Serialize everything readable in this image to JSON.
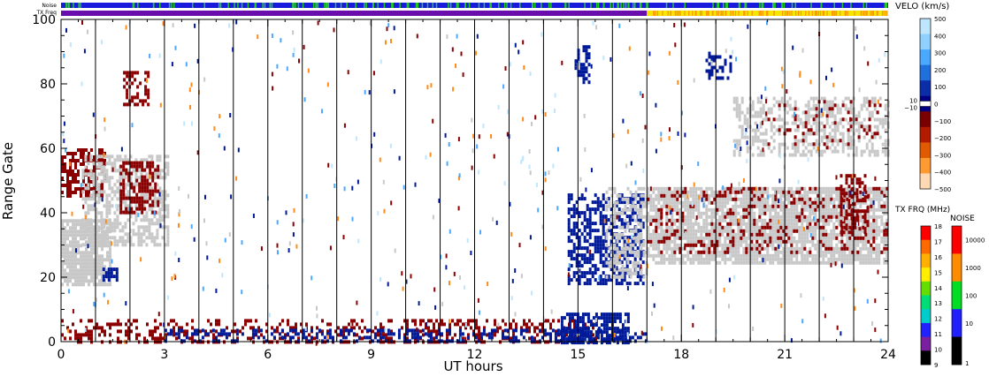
{
  "chart_data": {
    "type": "heatmap",
    "title": "",
    "xlabel": "UT hours",
    "ylabel": "Range Gate",
    "xlim": [
      0,
      24
    ],
    "ylim": [
      0,
      100
    ],
    "x_ticks": [
      0,
      3,
      6,
      9,
      12,
      15,
      18,
      21,
      24
    ],
    "y_ticks": [
      0,
      20,
      40,
      60,
      80,
      100
    ],
    "scan_lines_hours": [
      1,
      2,
      3,
      4,
      5,
      6,
      7,
      8,
      9,
      10,
      11,
      12,
      13,
      14,
      15,
      16,
      17,
      18,
      19,
      20,
      21,
      22,
      23
    ],
    "strips": {
      "noise_label": "Noise",
      "txfreq_label": "TX Freq",
      "noise_segments": [
        {
          "x0": 0,
          "x1": 24,
          "color": "#1a1adc"
        }
      ],
      "noise_speckle_color": "#22cc22",
      "txfreq_segments": [
        {
          "x0": 0,
          "x1": 17,
          "color": "#6a0dad"
        },
        {
          "x0": 17,
          "x1": 24,
          "color": "#f5e600"
        }
      ],
      "txfreq_speckle_color": "#ff9900"
    },
    "velocity_colorbar": {
      "title": "VELO (km/s)",
      "ticks": [
        "500",
        "400",
        "300",
        "200",
        "100",
        "0",
        "−100",
        "−200",
        "−300",
        "−400",
        "−500"
      ],
      "zero_band_labels": [
        "10",
        "−10"
      ],
      "colors": [
        "#bfe6ff",
        "#8fd0ff",
        "#4aa8ff",
        "#1f6fdc",
        "#0a2ea8",
        "#000080",
        "#7a0000",
        "#b31a00",
        "#e05a00",
        "#ff9a33",
        "#ffd9b3"
      ]
    },
    "txfreq_colorbar": {
      "title": "TX FRQ (MHz)",
      "ticks": [
        "18",
        "17",
        "16",
        "15",
        "14",
        "13",
        "12",
        "11",
        "10",
        "9"
      ],
      "colors": [
        "#ff0000",
        "#ff6a00",
        "#ffb000",
        "#ffee00",
        "#66dd00",
        "#00dd77",
        "#00cccc",
        "#2222ff",
        "#7a1fa0",
        "#000000"
      ]
    },
    "noise_colorbar": {
      "title": "NOISE",
      "ticks": [
        "10000",
        "1000",
        "100",
        "10",
        "1"
      ],
      "colors": [
        "#ff0000",
        "#ff8c00",
        "#00dd22",
        "#2020ff",
        "#000000"
      ]
    },
    "scatter_blobs": [
      {
        "x0": 0.0,
        "x1": 1.4,
        "y0": 18,
        "y1": 38,
        "color": "#c8c8c8",
        "density": 0.85
      },
      {
        "x0": 1.2,
        "x1": 1.6,
        "y0": 19,
        "y1": 23,
        "color": "#001a99",
        "density": 0.8
      },
      {
        "x0": 0.0,
        "x1": 1.3,
        "y0": 45,
        "y1": 60,
        "color": "#8b0000",
        "density": 0.55
      },
      {
        "x0": 0.6,
        "x1": 3.1,
        "y0": 30,
        "y1": 58,
        "color": "#c8c8c8",
        "density": 0.55
      },
      {
        "x0": 1.7,
        "x1": 2.8,
        "y0": 40,
        "y1": 56,
        "color": "#8b0000",
        "density": 0.55
      },
      {
        "x0": 1.8,
        "x1": 2.5,
        "y0": 74,
        "y1": 84,
        "color": "#8b0000",
        "density": 0.4
      },
      {
        "x0": 0.0,
        "x1": 15.5,
        "y0": 0,
        "y1": 7,
        "color": "#8b0000",
        "density": 0.35
      },
      {
        "x0": 3.0,
        "x1": 17.0,
        "y0": 0,
        "y1": 4,
        "color": "#001a99",
        "density": 0.35
      },
      {
        "x0": 14.5,
        "x1": 16.5,
        "y0": 0,
        "y1": 9,
        "color": "#001a99",
        "density": 0.7
      },
      {
        "x0": 14.7,
        "x1": 16.9,
        "y0": 18,
        "y1": 46,
        "color": "#001a99",
        "density": 0.55
      },
      {
        "x0": 15.8,
        "x1": 17.0,
        "y0": 20,
        "y1": 48,
        "color": "#c8c8c8",
        "density": 0.4
      },
      {
        "x0": 14.9,
        "x1": 15.3,
        "y0": 80,
        "y1": 92,
        "color": "#001a99",
        "density": 0.45
      },
      {
        "x0": 17.0,
        "x1": 24.0,
        "y0": 24,
        "y1": 48,
        "color": "#c8c8c8",
        "density": 0.8
      },
      {
        "x0": 17.0,
        "x1": 24.0,
        "y0": 28,
        "y1": 48,
        "color": "#8b0000",
        "density": 0.18
      },
      {
        "x0": 19.5,
        "x1": 24.0,
        "y0": 58,
        "y1": 76,
        "color": "#c8c8c8",
        "density": 0.45
      },
      {
        "x0": 20.5,
        "x1": 23.8,
        "y0": 60,
        "y1": 75,
        "color": "#8b0000",
        "density": 0.12
      },
      {
        "x0": 18.7,
        "x1": 19.4,
        "y0": 82,
        "y1": 90,
        "color": "#001a99",
        "density": 0.4
      },
      {
        "x0": 22.6,
        "x1": 23.4,
        "y0": 34,
        "y1": 52,
        "color": "#8b0000",
        "density": 0.45
      }
    ],
    "sparse_colors": [
      "#8b0000",
      "#001a99",
      "#c8c8c8",
      "#4aa8ff",
      "#ff8c1a",
      "#bfe6ff"
    ]
  }
}
